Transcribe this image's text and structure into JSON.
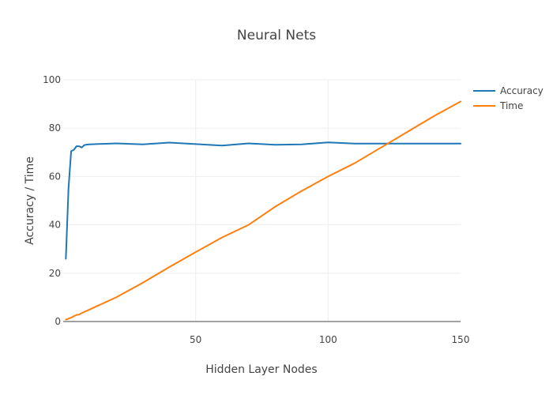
{
  "chart_data": {
    "type": "line",
    "title": "Neural Nets",
    "xlabel": "Hidden Layer Nodes",
    "ylabel": "Accuracy / Time",
    "xlim": [
      0,
      150
    ],
    "ylim": [
      0,
      100
    ],
    "xticks": [
      50,
      100,
      150
    ],
    "yticks": [
      0,
      20,
      40,
      60,
      80,
      100
    ],
    "grid": true,
    "legend_position": "top-right",
    "series": [
      {
        "name": "Accuracy",
        "color": "#1f77b4",
        "x": [
          1,
          2,
          3,
          4,
          5,
          6,
          7,
          8,
          9,
          10,
          20,
          30,
          40,
          50,
          60,
          70,
          80,
          90,
          100,
          110,
          120,
          130,
          140,
          150
        ],
        "y": [
          26,
          55,
          70.5,
          71,
          72.5,
          72.5,
          72,
          73,
          73.2,
          73.3,
          73.7,
          73.3,
          74,
          73.4,
          72.8,
          73.7,
          73.1,
          73.3,
          74.1,
          73.6,
          73.6,
          73.6,
          73.6,
          73.6
        ]
      },
      {
        "name": "Time",
        "color": "#ff7f0e",
        "x": [
          1,
          2,
          3,
          4,
          5,
          6,
          7,
          8,
          9,
          10,
          20,
          30,
          40,
          50,
          60,
          70,
          80,
          90,
          100,
          110,
          120,
          130,
          140,
          150
        ],
        "y": [
          0.8,
          1.2,
          1.6,
          2.2,
          2.7,
          2.9,
          3.5,
          4.0,
          4.5,
          5.0,
          10.0,
          16.0,
          22.5,
          28.7,
          34.8,
          40.0,
          47.5,
          54.0,
          60.0,
          65.5,
          72.0,
          78.5,
          85.0,
          91.0
        ]
      }
    ]
  }
}
